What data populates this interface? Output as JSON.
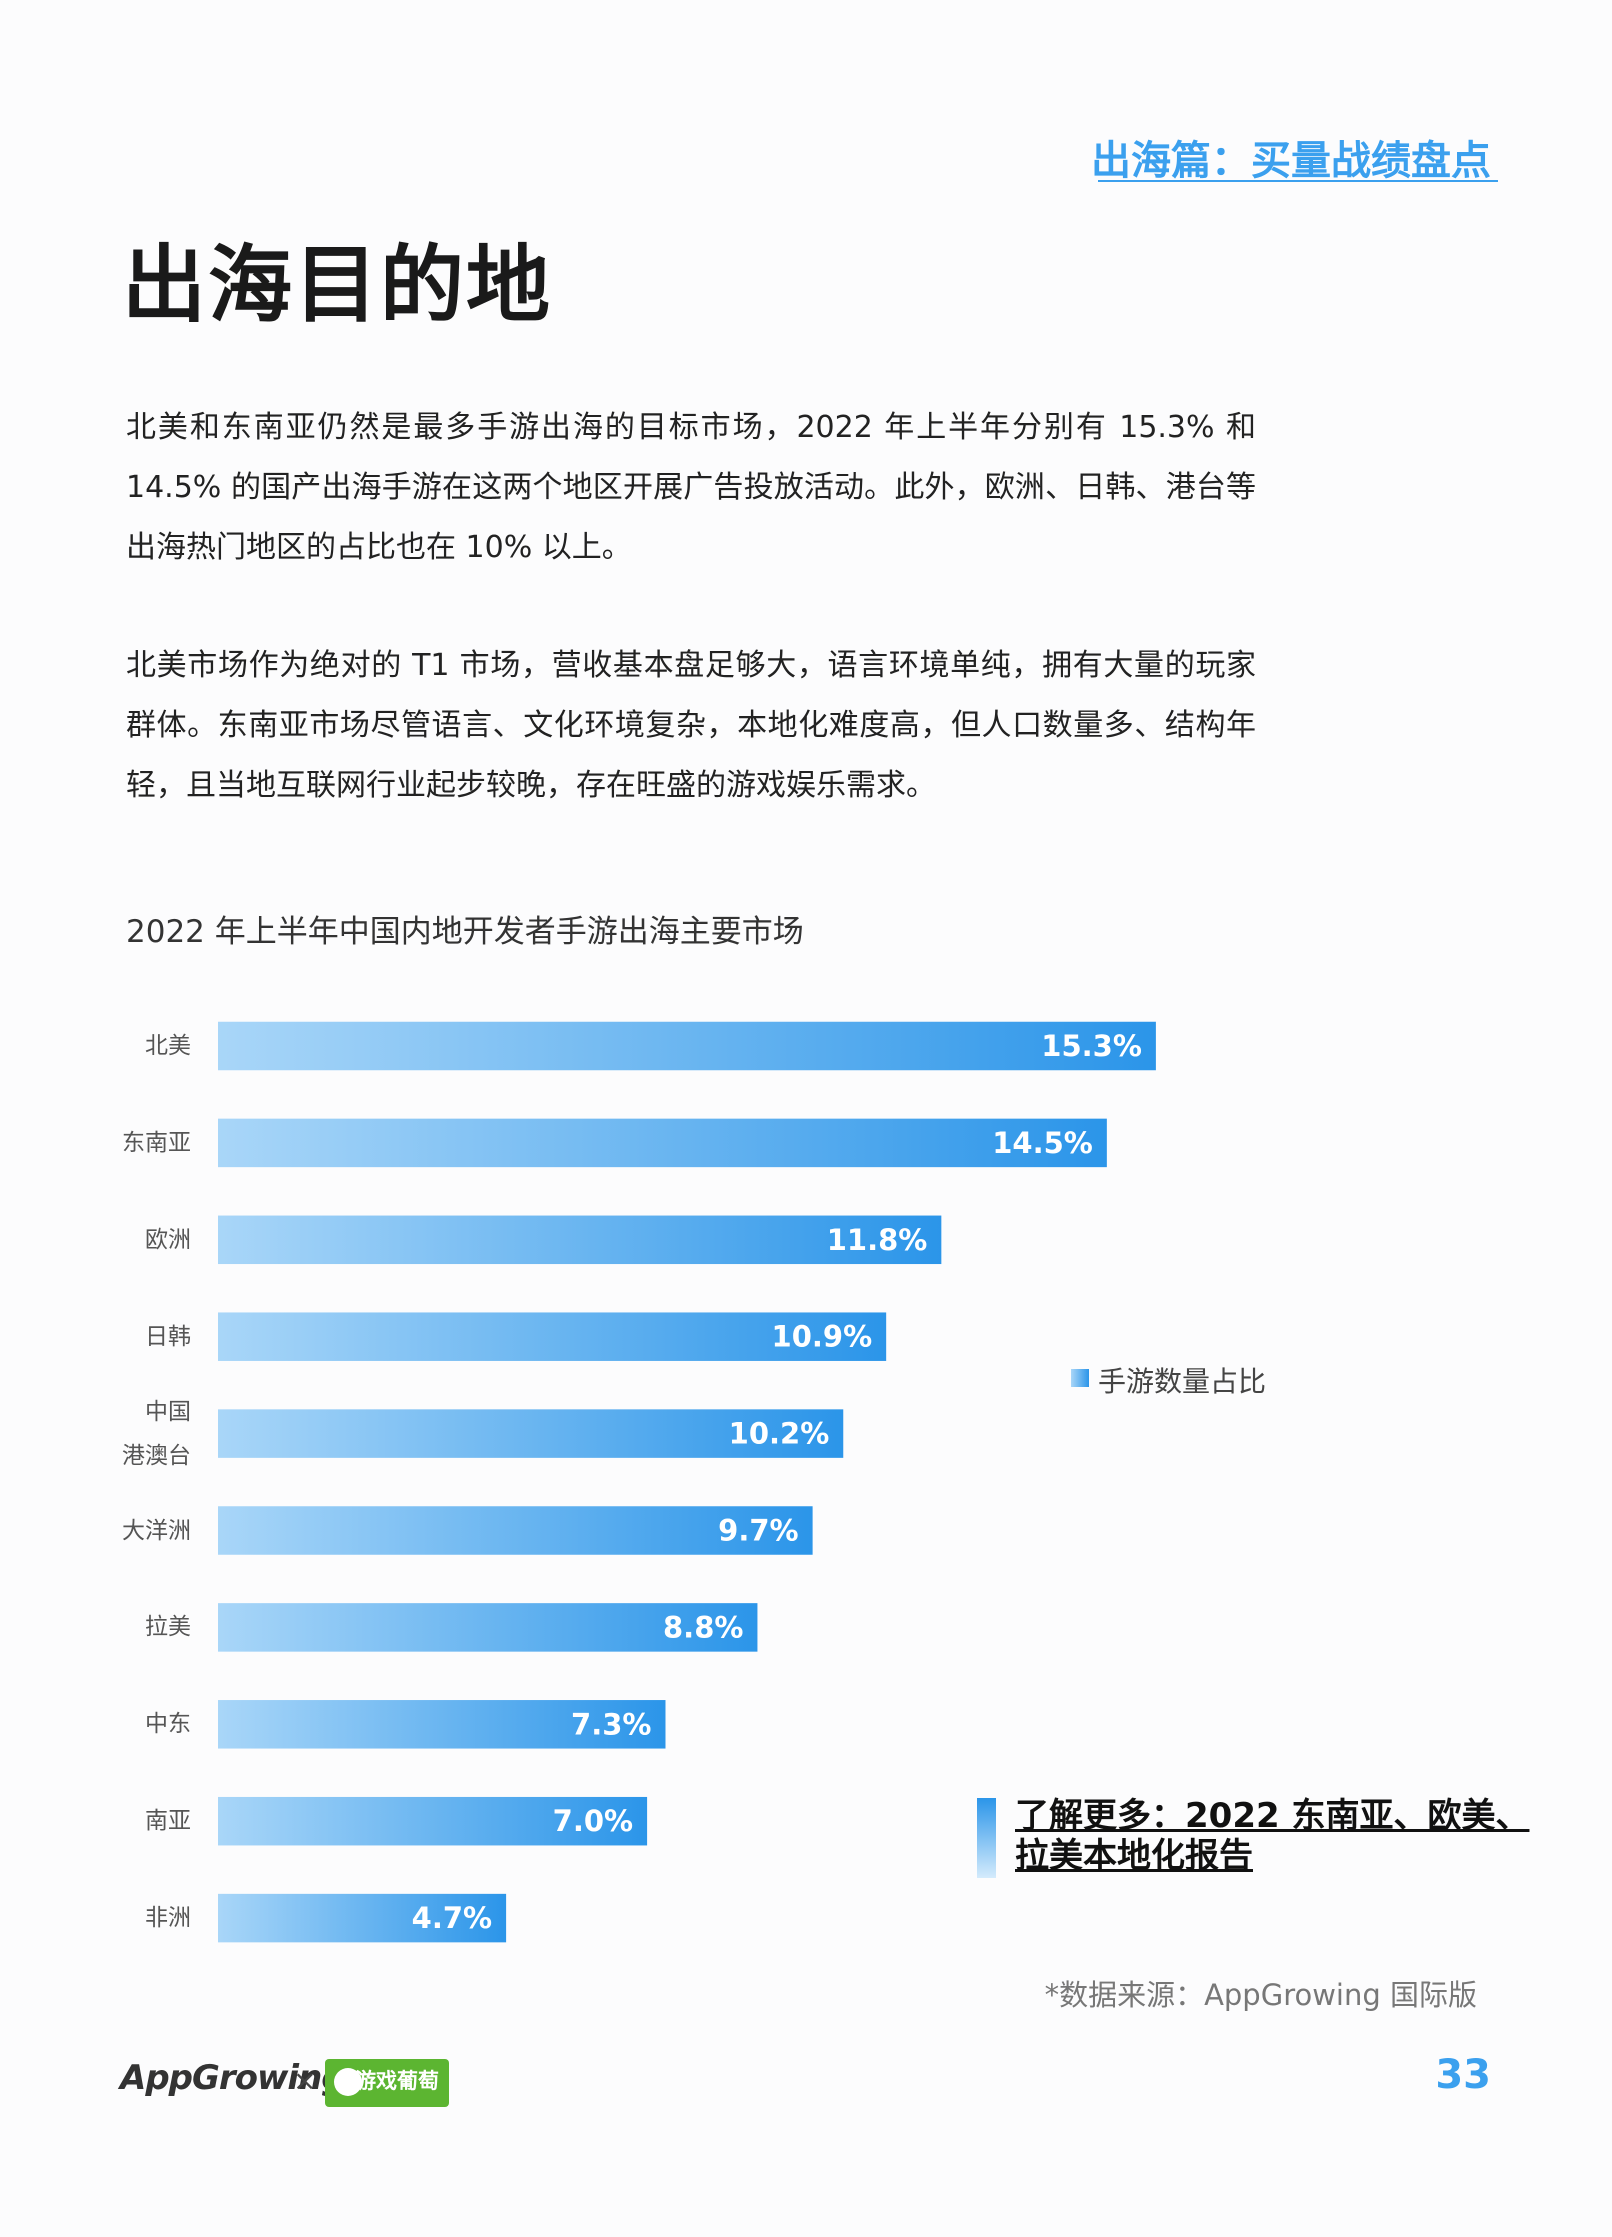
{
  "header": {
    "section": "出海篇：买量战绩盘点"
  },
  "title": "出海目的地",
  "paragraphs": [
    "北美和东南亚仍然是最多手游出海的目标市场，2022 年上半年分别有 15.3% 和 14.5% 的国产出海手游在这两个地区开展广告投放活动。此外，欧洲、日韩、港台等出海热门地区的占比也在 10% 以上。",
    "北美市场作为绝对的 T1 市场，营收基本盘足够大，语言环境单纯，拥有大量的玩家群体。东南亚市场尽管语言、文化环境复杂，本地化难度高，但人口数量多、结构年轻，且当地互联网行业起步较晚，存在旺盛的游戏娱乐需求。"
  ],
  "chart_data": {
    "type": "bar",
    "orientation": "horizontal",
    "title": "2022 年上半年中国内地开发者手游出海主要市场",
    "categories": [
      "北美",
      "东南亚",
      "欧洲",
      "日韩",
      "中国\n港澳台",
      "大洋洲",
      "拉美",
      "中东",
      "南亚",
      "非洲"
    ],
    "series": [
      {
        "name": "手游数量占比",
        "color": "#2b95e9",
        "values": [
          15.3,
          14.5,
          11.8,
          10.9,
          10.2,
          9.7,
          8.8,
          7.3,
          7.0,
          4.7
        ],
        "value_labels": [
          "15.3%",
          "14.5%",
          "11.8%",
          "10.9%",
          "10.2%",
          "9.7%",
          "8.8%",
          "7.3%",
          "7.0%",
          "4.7%"
        ]
      }
    ],
    "legend": "right"
  },
  "link": {
    "text": "了解更多：2022 东南亚、欧美、\n拉美本地化报告"
  },
  "source": "*数据来源：AppGrowing 国际版",
  "footer": {
    "logo": "AppGrowing",
    "times": "×",
    "partner": "游戏葡萄",
    "page": "33"
  }
}
